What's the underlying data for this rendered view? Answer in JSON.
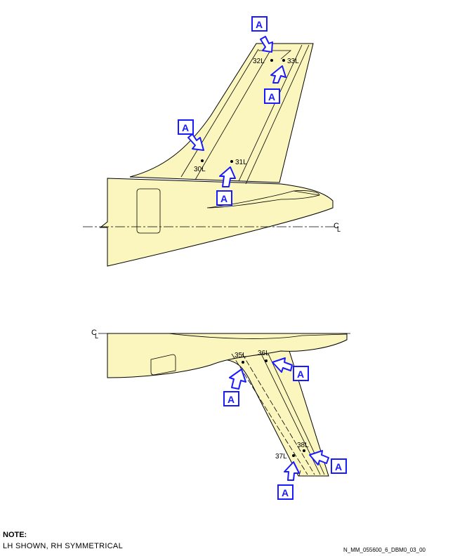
{
  "points": {
    "p30": "30L",
    "p31": "31L",
    "p32": "32L",
    "p33": "33L",
    "p35": "35L",
    "p36": "36L",
    "p37": "37L",
    "p38": "38L"
  },
  "callout_letter": "A",
  "centerline_symbol": "C",
  "centerline_sub": "L",
  "note": {
    "title": "NOTE:",
    "body": "LH SHOWN, RH SYMMETRICAL"
  },
  "figure_id": "N_MM_055600_6_DBM0_03_00"
}
